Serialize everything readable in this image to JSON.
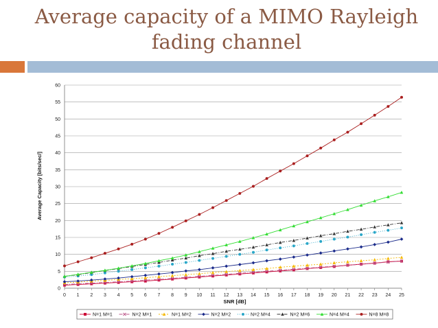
{
  "slide": {
    "title_line1": "Average capacity of a MIMO Rayleigh",
    "title_line2": "fading channel"
  },
  "chart_data": {
    "type": "line",
    "title": "Average capacity of a MIMO Rayleigh fading channel",
    "xlabel": "SNR [dB]",
    "ylabel": "Average Capacity [bits/sec/]",
    "xlim": [
      0,
      25
    ],
    "ylim": [
      0,
      60
    ],
    "xticks": [
      0,
      1,
      2,
      3,
      4,
      5,
      6,
      7,
      8,
      9,
      10,
      11,
      12,
      13,
      14,
      15,
      16,
      17,
      18,
      19,
      20,
      21,
      22,
      23,
      24,
      25
    ],
    "yticks": [
      0,
      5,
      10,
      15,
      20,
      25,
      30,
      35,
      40,
      45,
      50,
      55,
      60
    ],
    "grid": "horizontal",
    "legend_position": "bottom",
    "x": [
      0,
      1,
      2,
      3,
      4,
      5,
      6,
      7,
      8,
      9,
      10,
      11,
      12,
      13,
      14,
      15,
      16,
      17,
      18,
      19,
      20,
      21,
      22,
      23,
      24,
      25
    ],
    "series": [
      {
        "name": "N=1 M=1",
        "color": "#cc0033",
        "dash": "",
        "marker": "square",
        "values": [
          0.9,
          1.1,
          1.3,
          1.5,
          1.7,
          1.9,
          2.1,
          2.4,
          2.7,
          3.0,
          3.3,
          3.6,
          3.9,
          4.2,
          4.5,
          4.8,
          5.1,
          5.4,
          5.8,
          6.1,
          6.4,
          6.8,
          7.1,
          7.4,
          7.8,
          8.0
        ]
      },
      {
        "name": "N=2 M=1",
        "color": "#bb5588",
        "dash": "5,2,1,2",
        "marker": "x",
        "values": [
          1.1,
          1.3,
          1.5,
          1.7,
          1.9,
          2.1,
          2.4,
          2.6,
          2.9,
          3.2,
          3.5,
          3.8,
          4.1,
          4.4,
          4.7,
          5.0,
          5.3,
          5.6,
          5.9,
          6.2,
          6.5,
          6.8,
          7.1,
          7.4,
          7.7,
          8.0
        ]
      },
      {
        "name": "N=1 M=2",
        "color": "#f5b800",
        "dash": "2,2",
        "marker": "triangle",
        "values": [
          1.6,
          1.8,
          2.1,
          2.3,
          2.6,
          2.8,
          3.1,
          3.4,
          3.7,
          4.0,
          4.3,
          4.6,
          4.9,
          5.2,
          5.5,
          5.8,
          6.2,
          6.5,
          6.8,
          7.1,
          7.5,
          7.8,
          8.1,
          8.4,
          8.8,
          9.1
        ]
      },
      {
        "name": "N=2 M=2",
        "color": "#1a2a8a",
        "dash": "",
        "marker": "diamond",
        "values": [
          1.9,
          2.1,
          2.4,
          2.7,
          3.0,
          3.4,
          3.8,
          4.2,
          4.6,
          5.1,
          5.5,
          6.0,
          6.5,
          7.0,
          7.5,
          8.1,
          8.6,
          9.2,
          9.8,
          10.4,
          11.0,
          11.6,
          12.2,
          12.9,
          13.6,
          14.5
        ]
      },
      {
        "name": "N=2 M=4",
        "color": "#2aa7c8",
        "dash": "1,2",
        "marker": "circle",
        "values": [
          3.3,
          3.6,
          4.0,
          4.5,
          5.0,
          5.5,
          6.0,
          6.5,
          7.1,
          7.6,
          8.2,
          8.8,
          9.4,
          10.0,
          10.6,
          11.3,
          11.9,
          12.5,
          13.2,
          13.8,
          14.5,
          15.1,
          15.8,
          16.5,
          17.1,
          17.8
        ]
      },
      {
        "name": "N=2 M=6",
        "color": "#333333",
        "dash": "5,2,1,2",
        "marker": "triangle",
        "values": [
          3.5,
          4.0,
          4.6,
          5.2,
          5.8,
          6.4,
          7.0,
          7.6,
          8.3,
          8.9,
          9.6,
          10.2,
          10.9,
          11.5,
          12.1,
          12.8,
          13.5,
          14.1,
          14.8,
          15.5,
          16.1,
          16.8,
          17.4,
          18.1,
          18.7,
          19.3
        ]
      },
      {
        "name": "N=4 M=4",
        "color": "#33dd33",
        "dash": "",
        "marker": "triangle",
        "values": [
          3.5,
          4.1,
          4.7,
          5.3,
          5.9,
          6.6,
          7.3,
          8.1,
          8.9,
          9.8,
          10.8,
          11.8,
          12.8,
          13.8,
          14.9,
          16.0,
          17.2,
          18.4,
          19.6,
          20.8,
          22.0,
          23.2,
          24.5,
          25.8,
          27.0,
          28.3
        ]
      },
      {
        "name": "N=8 M=8",
        "color": "#aa1f1f",
        "dash": "",
        "marker": "circle",
        "values": [
          6.6,
          7.8,
          9.0,
          10.3,
          11.6,
          13.0,
          14.5,
          16.2,
          18.0,
          19.9,
          21.8,
          23.8,
          25.9,
          28.0,
          30.1,
          32.4,
          34.6,
          36.8,
          39.1,
          41.4,
          43.8,
          46.1,
          48.6,
          51.1,
          53.7,
          56.4
        ]
      }
    ]
  }
}
